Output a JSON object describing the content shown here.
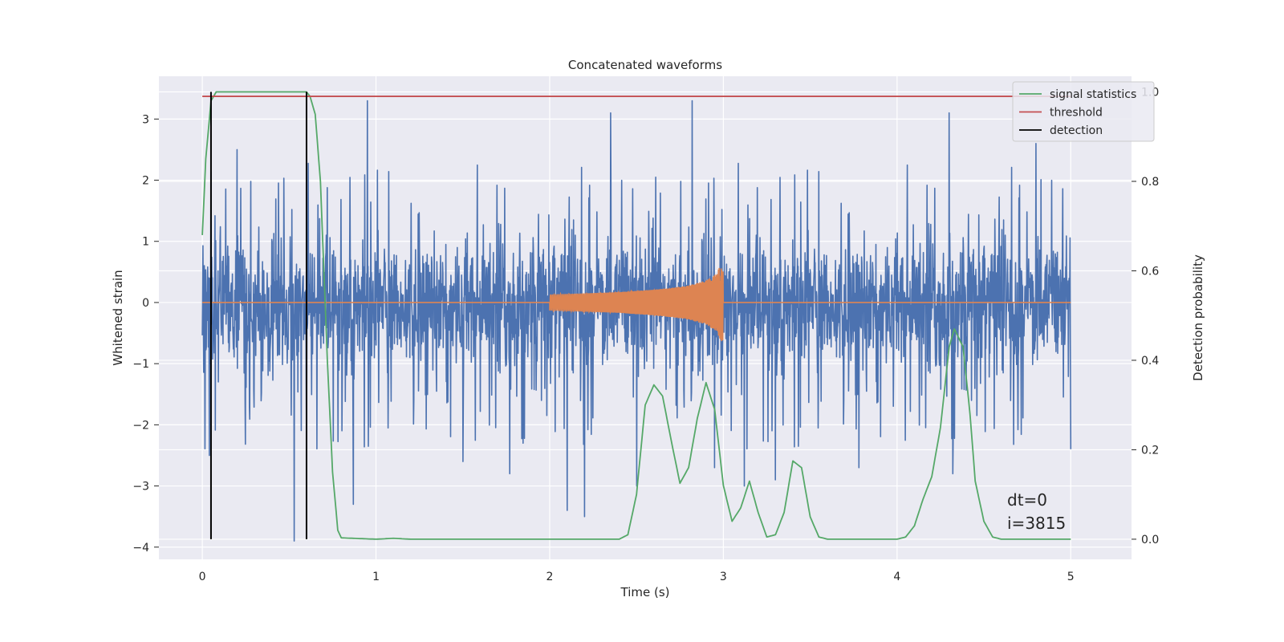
{
  "chart_data": {
    "type": "line",
    "title": "Concatenated waveforms",
    "xlabel": "Time (s)",
    "ylabel": "Whitened strain",
    "ylabel_right": "Detection probability",
    "xlim": [
      -0.25,
      5.35
    ],
    "ylim": [
      -4.2,
      3.7
    ],
    "ylim_right": [
      -0.045,
      1.035
    ],
    "x_ticks": [
      0,
      1,
      2,
      3,
      4,
      5
    ],
    "x_tick_labels": [
      "0",
      "1",
      "2",
      "3",
      "4",
      "5"
    ],
    "y_ticks": [
      3,
      2,
      1,
      0,
      -1,
      -2,
      -3,
      -4
    ],
    "y_tick_labels": [
      "3",
      "2",
      "1",
      "0",
      "−1",
      "−2",
      "−3",
      "−4"
    ],
    "y_right_ticks": [
      1.0,
      0.8,
      0.6,
      0.4,
      0.2,
      0.0
    ],
    "y_right_tick_labels": [
      "1.0",
      "0.8",
      "0.6",
      "0.4",
      "0.2",
      "0.0"
    ],
    "grid": true,
    "legend_position": "top-right",
    "legend": [
      {
        "label": "signal statistics",
        "color": "#55a868"
      },
      {
        "label": "threshold",
        "color": "#c44e52"
      },
      {
        "label": "detection",
        "color": "#000000"
      }
    ],
    "annotation": [
      "dt=0",
      "i=3815"
    ],
    "series": [
      {
        "name": "whitened strain (noise)",
        "axis": "left",
        "color": "#4c72b0",
        "x_range": [
          0,
          5
        ],
        "envelope_typical": [
          -1.6,
          1.7
        ],
        "peak_spikes": [
          {
            "x": 0.04,
            "y": -2.5
          },
          {
            "x": 0.2,
            "y": 2.5
          },
          {
            "x": 0.2,
            "y": -3.0
          },
          {
            "x": 0.53,
            "y": -3.9
          },
          {
            "x": 0.6,
            "y": -2.4
          },
          {
            "x": 0.87,
            "y": -3.3
          },
          {
            "x": 0.95,
            "y": 3.3
          },
          {
            "x": 1.5,
            "y": -2.6
          },
          {
            "x": 1.77,
            "y": -2.8
          },
          {
            "x": 2.1,
            "y": -3.4
          },
          {
            "x": 2.2,
            "y": -3.5
          },
          {
            "x": 2.35,
            "y": 3.1
          },
          {
            "x": 2.5,
            "y": -3.0
          },
          {
            "x": 2.82,
            "y": 3.3
          },
          {
            "x": 2.95,
            "y": -2.7
          },
          {
            "x": 3.12,
            "y": -3.0
          },
          {
            "x": 3.3,
            "y": -2.9
          },
          {
            "x": 3.78,
            "y": -2.7
          },
          {
            "x": 4.3,
            "y": 3.1
          },
          {
            "x": 4.32,
            "y": -2.8
          },
          {
            "x": 4.8,
            "y": 2.6
          },
          {
            "x": 5.0,
            "y": -2.4
          }
        ]
      },
      {
        "name": "injected waveform",
        "axis": "left",
        "color": "#dd8452",
        "x": [
          0,
          2.0,
          2.1,
          2.2,
          2.3,
          2.4,
          2.5,
          2.6,
          2.7,
          2.8,
          2.9,
          2.95,
          3.0,
          5.0
        ],
        "amplitude": [
          0,
          0.13,
          0.14,
          0.15,
          0.16,
          0.17,
          0.19,
          0.21,
          0.24,
          0.28,
          0.36,
          0.45,
          0.68,
          0
        ]
      },
      {
        "name": "signal statistics",
        "axis": "right",
        "color": "#55a868",
        "x": [
          0,
          0.02,
          0.05,
          0.08,
          0.1,
          0.2,
          0.3,
          0.4,
          0.5,
          0.6,
          0.62,
          0.65,
          0.68,
          0.7,
          0.72,
          0.75,
          0.78,
          0.8,
          1.0,
          1.1,
          1.2,
          2.4,
          2.45,
          2.5,
          2.55,
          2.6,
          2.65,
          2.7,
          2.75,
          2.8,
          2.85,
          2.9,
          2.95,
          3.0,
          3.05,
          3.1,
          3.15,
          3.2,
          3.25,
          3.3,
          3.35,
          3.4,
          3.45,
          3.5,
          3.55,
          3.6,
          4.0,
          4.05,
          4.1,
          4.15,
          4.2,
          4.25,
          4.3,
          4.33,
          4.38,
          4.42,
          4.45,
          4.5,
          4.55,
          4.6,
          5.0
        ],
        "values": [
          0.68,
          0.85,
          0.98,
          1.0,
          1.0,
          1.0,
          1.0,
          1.0,
          1.0,
          1.0,
          0.99,
          0.95,
          0.8,
          0.6,
          0.4,
          0.15,
          0.02,
          0.003,
          0.0,
          0.002,
          0.0,
          0.0,
          0.01,
          0.1,
          0.3,
          0.345,
          0.32,
          0.22,
          0.125,
          0.16,
          0.27,
          0.35,
          0.29,
          0.12,
          0.04,
          0.07,
          0.13,
          0.06,
          0.005,
          0.01,
          0.06,
          0.175,
          0.16,
          0.05,
          0.005,
          0.0,
          0.0,
          0.005,
          0.03,
          0.09,
          0.14,
          0.25,
          0.43,
          0.47,
          0.43,
          0.28,
          0.13,
          0.04,
          0.005,
          0.0,
          0.0
        ]
      },
      {
        "name": "threshold",
        "axis": "right",
        "color": "#c44e52",
        "x": [
          0,
          5
        ],
        "values": [
          0.99,
          0.99
        ]
      },
      {
        "name": "detection",
        "axis": "right",
        "color": "#000000",
        "type": "vertical_lines",
        "x": [
          0.05,
          0.6
        ],
        "y_range": [
          0.0,
          1.0
        ]
      }
    ]
  }
}
